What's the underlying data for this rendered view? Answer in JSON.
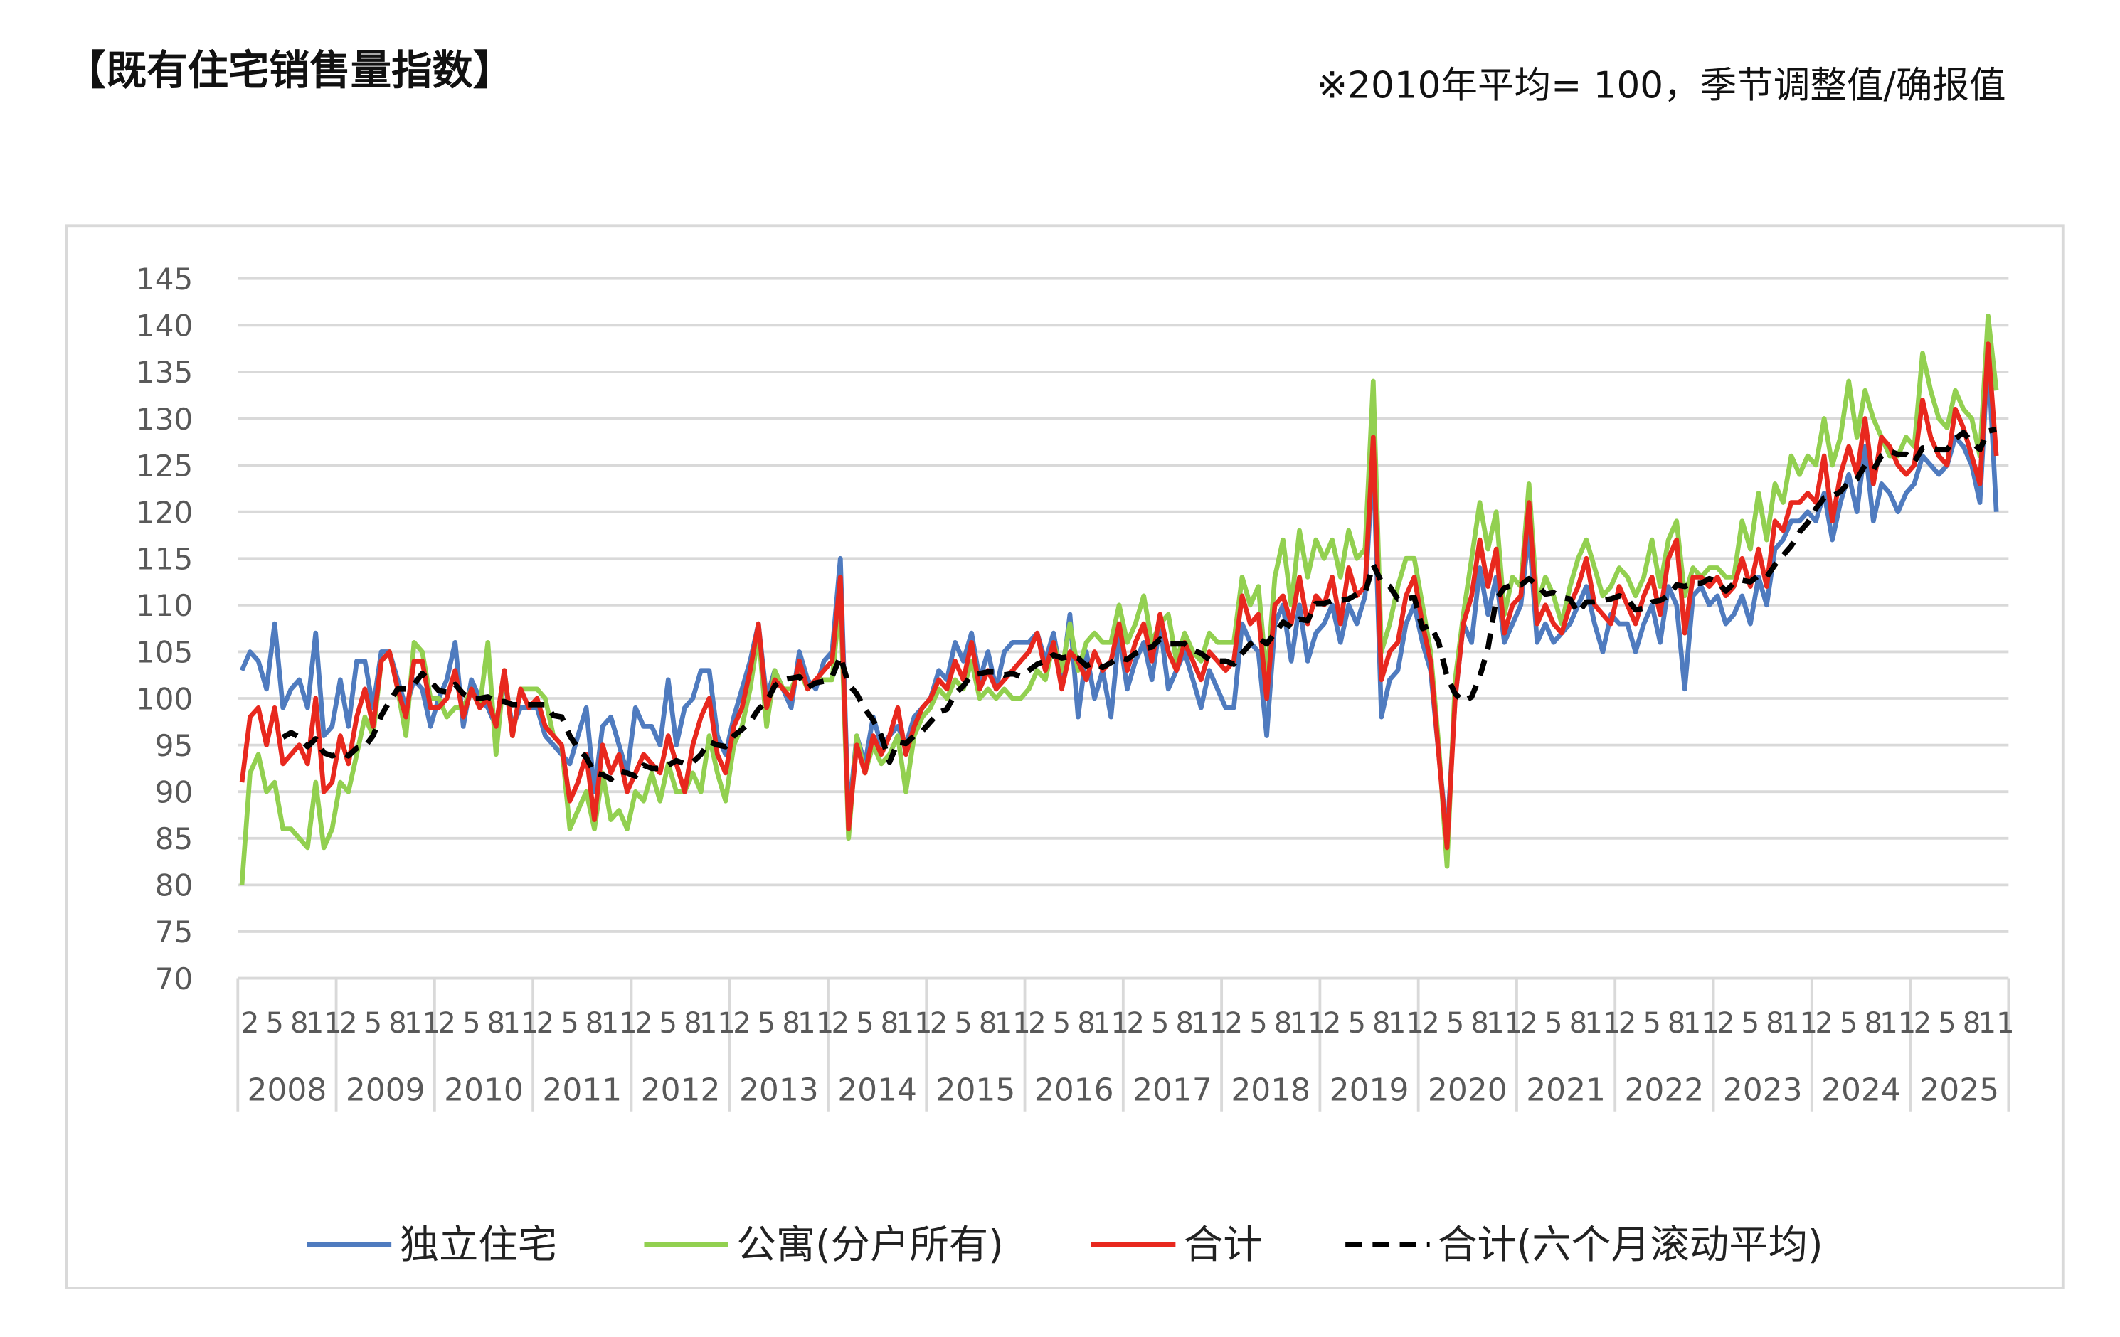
{
  "header": {
    "title": "【既有住宅销售量指数】",
    "note": "※2010年平均= 100，季节调整值/确报值"
  },
  "chart_data": {
    "type": "line",
    "title": "既有住宅销售量指数",
    "subtitle": "※2010年平均= 100，季节调整值/确报值",
    "xlabel": "",
    "ylabel": "",
    "ylim": [
      70,
      145
    ],
    "yticks": [
      70,
      75,
      80,
      85,
      90,
      95,
      100,
      105,
      110,
      115,
      120,
      125,
      130,
      135,
      140,
      145
    ],
    "grid": true,
    "legend_position": "bottom",
    "start": "2008-01",
    "end": "2025-11",
    "frequency": "monthly",
    "month_tick_labels": [
      2,
      5,
      8,
      11
    ],
    "years": [
      "2008",
      "2009",
      "2010",
      "2011",
      "2012",
      "2013",
      "2014",
      "2015",
      "2016",
      "2017",
      "2018",
      "2019",
      "2020",
      "2021",
      "2022",
      "2023",
      "2024",
      "2025"
    ],
    "series": [
      {
        "name": "独立住宅",
        "color": "#4f7bbf",
        "style": "solid",
        "values": [
          103,
          105,
          104,
          101,
          108,
          99,
          101,
          102,
          99,
          107,
          96,
          97,
          102,
          97,
          104,
          104,
          99,
          105,
          105,
          102,
          99,
          102,
          101,
          97,
          100,
          102,
          106,
          97,
          102,
          100,
          99,
          97,
          102,
          97,
          99,
          99,
          99,
          96,
          95,
          94,
          93,
          96,
          99,
          90,
          97,
          98,
          95,
          92,
          99,
          97,
          97,
          95,
          102,
          95,
          99,
          100,
          103,
          103,
          96,
          94,
          98,
          101,
          104,
          108,
          100,
          103,
          101,
          99,
          105,
          102,
          101,
          104,
          105,
          115,
          87,
          96,
          93,
          98,
          95,
          96,
          97,
          95,
          98,
          99,
          100,
          103,
          102,
          106,
          104,
          107,
          102,
          105,
          101,
          105,
          106,
          106,
          106,
          107,
          104,
          107,
          102,
          109,
          98,
          105,
          100,
          103,
          98,
          107,
          101,
          104,
          106,
          102,
          108,
          101,
          103,
          105,
          102,
          99,
          103,
          101,
          99,
          99,
          108,
          106,
          105,
          96,
          108,
          110,
          104,
          110,
          104,
          107,
          108,
          110,
          106,
          110,
          108,
          111,
          126,
          98,
          102,
          103,
          108,
          110,
          106,
          103,
          94,
          85,
          100,
          108,
          106,
          114,
          109,
          113,
          106,
          108,
          110,
          118,
          106,
          108,
          106,
          107,
          108,
          110,
          112,
          108,
          105,
          109,
          108,
          108,
          105,
          108,
          110,
          106,
          112,
          110,
          101,
          111,
          112,
          110,
          111,
          108,
          109,
          111,
          108,
          113,
          110,
          116,
          117,
          119,
          119,
          120,
          119,
          122,
          117,
          121,
          124,
          120,
          127,
          119,
          123,
          122,
          120,
          122,
          123,
          126,
          125,
          124,
          125,
          128,
          127,
          125,
          121,
          137,
          120
        ]
      },
      {
        "name": "公寓(分户所有)",
        "color": "#92d050",
        "style": "solid",
        "values": [
          80,
          92,
          94,
          90,
          91,
          86,
          86,
          85,
          84,
          91,
          84,
          86,
          91,
          90,
          94,
          98,
          96,
          104,
          105,
          101,
          96,
          106,
          105,
          100,
          100,
          98,
          99,
          99,
          101,
          99,
          106,
          94,
          103,
          96,
          101,
          101,
          101,
          100,
          96,
          95,
          86,
          88,
          90,
          86,
          92,
          87,
          88,
          86,
          90,
          89,
          92,
          89,
          93,
          90,
          90,
          92,
          90,
          96,
          92,
          89,
          95,
          97,
          101,
          107,
          97,
          103,
          101,
          101,
          103,
          101,
          102,
          102,
          102,
          111,
          85,
          96,
          92,
          95,
          93,
          94,
          96,
          90,
          96,
          98,
          99,
          101,
          100,
          102,
          101,
          104,
          100,
          101,
          100,
          101,
          100,
          100,
          101,
          103,
          102,
          106,
          103,
          108,
          103,
          106,
          107,
          106,
          106,
          110,
          106,
          108,
          111,
          106,
          108,
          109,
          104,
          107,
          105,
          104,
          107,
          106,
          106,
          106,
          113,
          110,
          112,
          102,
          113,
          117,
          110,
          118,
          113,
          117,
          115,
          117,
          113,
          118,
          115,
          116,
          134,
          105,
          108,
          112,
          115,
          115,
          110,
          105,
          95,
          82,
          102,
          109,
          115,
          121,
          116,
          120,
          109,
          113,
          112,
          123,
          110,
          113,
          111,
          108,
          112,
          115,
          117,
          114,
          111,
          112,
          114,
          113,
          111,
          113,
          117,
          112,
          117,
          119,
          111,
          114,
          113,
          114,
          114,
          113,
          113,
          119,
          116,
          122,
          117,
          123,
          121,
          126,
          124,
          126,
          125,
          130,
          125,
          128,
          134,
          128,
          133,
          130,
          128,
          126,
          126,
          128,
          127,
          137,
          133,
          130,
          129,
          133,
          131,
          130,
          126,
          141,
          133
        ]
      },
      {
        "name": "合计",
        "color": "#e8281e",
        "style": "solid",
        "values": [
          91,
          98,
          99,
          95,
          99,
          93,
          94,
          95,
          93,
          100,
          90,
          91,
          96,
          93,
          98,
          101,
          97,
          104,
          105,
          101,
          98,
          104,
          104,
          99,
          99,
          100,
          103,
          98,
          101,
          99,
          100,
          97,
          103,
          96,
          101,
          99,
          100,
          97,
          96,
          95,
          89,
          91,
          94,
          87,
          95,
          92,
          94,
          90,
          92,
          94,
          93,
          92,
          96,
          93,
          90,
          95,
          98,
          100,
          94,
          92,
          97,
          99,
          103,
          108,
          99,
          102,
          101,
          100,
          104,
          101,
          102,
          103,
          104,
          113,
          86,
          95,
          92,
          96,
          94,
          96,
          99,
          94,
          97,
          99,
          100,
          102,
          101,
          104,
          102,
          106,
          101,
          103,
          101,
          102,
          103,
          104,
          105,
          107,
          103,
          106,
          101,
          105,
          104,
          102,
          105,
          103,
          104,
          108,
          103,
          106,
          108,
          104,
          109,
          105,
          103,
          106,
          104,
          102,
          105,
          104,
          103,
          104,
          111,
          108,
          109,
          100,
          110,
          111,
          108,
          113,
          108,
          111,
          110,
          113,
          108,
          114,
          111,
          112,
          128,
          102,
          105,
          106,
          111,
          113,
          108,
          104,
          94,
          84,
          100,
          108,
          111,
          117,
          112,
          116,
          107,
          110,
          111,
          121,
          108,
          110,
          108,
          107,
          110,
          112,
          115,
          110,
          109,
          108,
          112,
          110,
          108,
          111,
          113,
          109,
          115,
          117,
          107,
          113,
          113,
          112,
          113,
          111,
          112,
          115,
          112,
          116,
          112,
          119,
          118,
          121,
          121,
          122,
          121,
          126,
          119,
          124,
          127,
          124,
          130,
          123,
          128,
          127,
          125,
          124,
          125,
          132,
          128,
          126,
          125,
          131,
          129,
          126,
          123,
          138,
          126
        ]
      },
      {
        "name": "合计(六个月滚动平均)",
        "color": "#000000",
        "style": "dashed",
        "derived_from": "合计",
        "window": 6
      }
    ]
  }
}
